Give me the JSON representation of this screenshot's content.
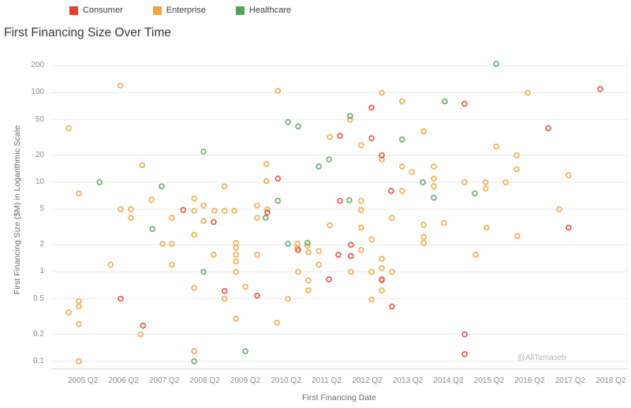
{
  "title": "First Financing Size Over Time",
  "watermark": "@AliTamaseb",
  "legend": {
    "items": [
      {
        "label": "Consumer",
        "color": "#e2402f"
      },
      {
        "label": "Enterprise",
        "color": "#f2a33c"
      },
      {
        "label": "Healthcare",
        "color": "#55a45b"
      }
    ]
  },
  "chart_data": {
    "type": "scatter",
    "title": "First Financing Size Over Time",
    "xlabel": "First Financing Date",
    "ylabel": "First Financing Size ($M) in Logarithmic Scale",
    "y_scale": "log",
    "grid": "horizontal",
    "legend_position": "top",
    "y_ticks": [
      200,
      100,
      50,
      20,
      10,
      5,
      2,
      1,
      0.5,
      0.2,
      0.1
    ],
    "x_tick_labels": [
      "2005 Q2",
      "2006 Q2",
      "2007 Q2",
      "2008 Q2",
      "2009 Q2",
      "2010 Q2",
      "2011 Q2",
      "2012 Q2",
      "2013 Q2",
      "2014 Q2",
      "2015 Q2",
      "2016 Q2",
      "2017 Q2",
      "2018 Q2"
    ],
    "x_tick_years": [
      2005.25,
      2006.25,
      2007.25,
      2008.25,
      2009.25,
      2010.25,
      2011.25,
      2012.25,
      2013.25,
      2014.25,
      2015.25,
      2016.25,
      2017.25,
      2018.25
    ],
    "x_range": [
      2004.47,
      2018.65
    ],
    "y_range": [
      0.083,
      290
    ],
    "series": [
      {
        "name": "Enterprise",
        "color": "#f2a33c",
        "points": [
          [
            2004.9,
            40
          ],
          [
            2004.9,
            0.35
          ],
          [
            2005.15,
            7.5
          ],
          [
            2005.15,
            0.47
          ],
          [
            2005.15,
            0.41
          ],
          [
            2005.15,
            0.26
          ],
          [
            2005.15,
            0.1
          ],
          [
            2005.93,
            1.2
          ],
          [
            2006.18,
            120
          ],
          [
            2006.18,
            5.0
          ],
          [
            2006.43,
            5.0
          ],
          [
            2006.43,
            4.0
          ],
          [
            2006.67,
            0.2
          ],
          [
            2006.71,
            15.5
          ],
          [
            2006.94,
            6.4
          ],
          [
            2007.21,
            2.05
          ],
          [
            2007.44,
            4.0
          ],
          [
            2007.44,
            2.05
          ],
          [
            2007.44,
            1.2
          ],
          [
            2007.99,
            6.6
          ],
          [
            2007.99,
            4.8
          ],
          [
            2007.99,
            2.6
          ],
          [
            2007.99,
            0.66
          ],
          [
            2007.99,
            0.13
          ],
          [
            2008.22,
            5.5
          ],
          [
            2008.22,
            3.7
          ],
          [
            2008.49,
            4.8
          ],
          [
            2008.47,
            1.55
          ],
          [
            2008.74,
            9
          ],
          [
            2008.74,
            4.8
          ],
          [
            2008.74,
            0.5
          ],
          [
            2008.98,
            4.8
          ],
          [
            2009.02,
            2.1
          ],
          [
            2009.02,
            1.85
          ],
          [
            2009.02,
            1.55
          ],
          [
            2009.02,
            1.3
          ],
          [
            2009.02,
            1.0
          ],
          [
            2009.02,
            0.3
          ],
          [
            2009.25,
            0.68
          ],
          [
            2009.54,
            5.5
          ],
          [
            2009.54,
            4.0
          ],
          [
            2009.54,
            1.55
          ],
          [
            2009.77,
            16
          ],
          [
            2009.77,
            10.3
          ],
          [
            2009.79,
            5.0
          ],
          [
            2010.03,
            0.27
          ],
          [
            2010.05,
            105
          ],
          [
            2010.3,
            0.5
          ],
          [
            2010.53,
            2.05
          ],
          [
            2010.53,
            1.85
          ],
          [
            2010.55,
            1.0
          ],
          [
            2010.78,
            1.95
          ],
          [
            2010.8,
            1.65
          ],
          [
            2010.8,
            0.8
          ],
          [
            2010.8,
            0.62
          ],
          [
            2011.06,
            1.7
          ],
          [
            2011.06,
            1.2
          ],
          [
            2011.33,
            32
          ],
          [
            2011.33,
            3.3
          ],
          [
            2011.83,
            50
          ],
          [
            2011.85,
            1.0
          ],
          [
            2012.1,
            26
          ],
          [
            2012.1,
            6.2
          ],
          [
            2012.1,
            4.9
          ],
          [
            2012.1,
            3.1
          ],
          [
            2012.1,
            1.75
          ],
          [
            2012.36,
            2.3
          ],
          [
            2012.36,
            1.0
          ],
          [
            2012.36,
            0.49
          ],
          [
            2012.61,
            100
          ],
          [
            2012.61,
            18
          ],
          [
            2012.61,
            1.4
          ],
          [
            2012.61,
            1.1
          ],
          [
            2012.61,
            0.8
          ],
          [
            2012.61,
            0.62
          ],
          [
            2012.86,
            4.0
          ],
          [
            2012.86,
            1.0
          ],
          [
            2013.11,
            80
          ],
          [
            2013.11,
            15
          ],
          [
            2013.11,
            8
          ],
          [
            2013.35,
            13
          ],
          [
            2013.64,
            37
          ],
          [
            2013.64,
            3.35
          ],
          [
            2013.64,
            2.45
          ],
          [
            2013.64,
            2.1
          ],
          [
            2013.89,
            15
          ],
          [
            2013.89,
            11
          ],
          [
            2013.89,
            9
          ],
          [
            2014.14,
            3.5
          ],
          [
            2014.65,
            10
          ],
          [
            2014.92,
            1.55
          ],
          [
            2015.17,
            10
          ],
          [
            2015.17,
            8.5
          ],
          [
            2015.19,
            3.1
          ],
          [
            2015.43,
            25
          ],
          [
            2015.66,
            10
          ],
          [
            2015.93,
            20
          ],
          [
            2015.93,
            14
          ],
          [
            2015.95,
            2.5
          ],
          [
            2016.2,
            100
          ],
          [
            2016.98,
            5.0
          ],
          [
            2017.21,
            12
          ]
        ]
      },
      {
        "name": "Healthcare",
        "color": "#55a45b",
        "points": [
          [
            2005.66,
            10
          ],
          [
            2006.96,
            3.0
          ],
          [
            2007.19,
            9
          ],
          [
            2007.99,
            0.1
          ],
          [
            2008.22,
            22
          ],
          [
            2008.22,
            1.0
          ],
          [
            2009.25,
            0.13
          ],
          [
            2009.75,
            4.0
          ],
          [
            2010.05,
            6.2
          ],
          [
            2010.3,
            47
          ],
          [
            2010.3,
            2.05
          ],
          [
            2010.55,
            42
          ],
          [
            2010.78,
            2.1
          ],
          [
            2011.06,
            15
          ],
          [
            2011.31,
            18
          ],
          [
            2011.81,
            6.3
          ],
          [
            2011.83,
            55
          ],
          [
            2013.11,
            30
          ],
          [
            2013.62,
            10
          ],
          [
            2013.89,
            6.7
          ],
          [
            2014.16,
            80
          ],
          [
            2014.9,
            7.5
          ],
          [
            2015.43,
            210
          ]
        ]
      },
      {
        "name": "Consumer",
        "color": "#e2402f",
        "points": [
          [
            2006.18,
            0.5
          ],
          [
            2006.73,
            0.25
          ],
          [
            2007.72,
            4.9
          ],
          [
            2008.47,
            3.6
          ],
          [
            2008.74,
            0.61
          ],
          [
            2009.54,
            0.54
          ],
          [
            2009.79,
            4.6
          ],
          [
            2010.05,
            11
          ],
          [
            2010.55,
            1.75
          ],
          [
            2011.31,
            0.82
          ],
          [
            2011.54,
            1.55
          ],
          [
            2011.58,
            33
          ],
          [
            2011.58,
            6.2
          ],
          [
            2011.85,
            2.0
          ],
          [
            2011.85,
            1.5
          ],
          [
            2012.36,
            68
          ],
          [
            2012.36,
            31
          ],
          [
            2012.61,
            20
          ],
          [
            2012.61,
            0.82
          ],
          [
            2012.84,
            8
          ],
          [
            2012.86,
            0.41
          ],
          [
            2014.65,
            75
          ],
          [
            2014.65,
            0.2
          ],
          [
            2014.65,
            0.12
          ],
          [
            2016.71,
            40
          ],
          [
            2017.21,
            3.1
          ],
          [
            2017.99,
            110
          ]
        ]
      }
    ]
  }
}
